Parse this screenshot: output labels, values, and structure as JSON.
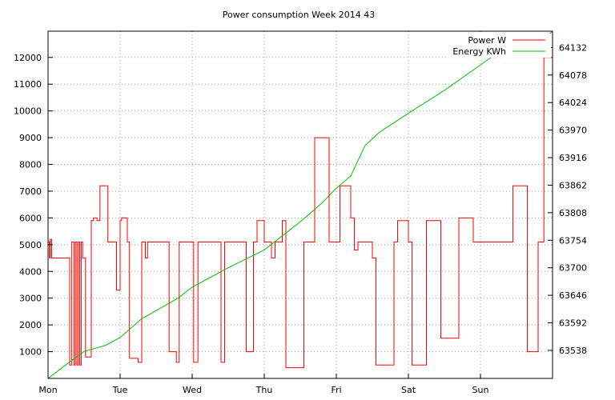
{
  "chart_data": {
    "type": "line",
    "title": "Power consumption Week 2014 43",
    "categories": [
      "Mon",
      "Tue",
      "Wed",
      "Thu",
      "Fri",
      "Sat",
      "Sun"
    ],
    "y_left": {
      "ticks": [
        1000,
        2000,
        3000,
        4000,
        5000,
        6000,
        7000,
        8000,
        9000,
        10000,
        11000,
        12000
      ],
      "ylim": [
        0,
        12980
      ]
    },
    "y_right": {
      "ticks": [
        63538,
        63592,
        63646,
        63700,
        63754,
        63808,
        63862,
        63916,
        63970,
        64024,
        64078,
        64132
      ],
      "ylim": [
        63483,
        64164
      ]
    },
    "xlim": [
      0,
      7
    ],
    "grid": true,
    "legend": "top-right",
    "colors": {
      "power": "#ff0000",
      "energy": "#00c000"
    },
    "series": [
      {
        "name": "Power W",
        "axis": "left",
        "color": "#ff0000",
        "step": true,
        "x": [
          0,
          0.02,
          0.03,
          0.05,
          0.06,
          0.3,
          0.33,
          0.36,
          0.38,
          0.4,
          0.42,
          0.44,
          0.46,
          0.48,
          0.5,
          0.52,
          0.6,
          0.63,
          0.68,
          0.72,
          0.8,
          0.83,
          0.95,
          1.0,
          1.02,
          1.1,
          1.13,
          1.2,
          1.25,
          1.3,
          1.35,
          1.38,
          1.65,
          1.68,
          1.78,
          1.82,
          2.0,
          2.02,
          2.08,
          2.2,
          2.4,
          2.45,
          2.7,
          2.75,
          2.85,
          2.9,
          3.0,
          3.05,
          3.1,
          3.15,
          3.25,
          3.3,
          3.5,
          3.55,
          3.7,
          3.78,
          3.9,
          3.95,
          4.0,
          4.05,
          4.15,
          4.2,
          4.25,
          4.3,
          4.5,
          4.55,
          4.75,
          4.8,
          4.85,
          5.0,
          5.05,
          5.2,
          5.25,
          5.4,
          5.45,
          5.7,
          5.8,
          5.9,
          6.0,
          6.05,
          6.45,
          6.5,
          6.65,
          6.7,
          6.8,
          6.88,
          6.95,
          7.0
        ],
        "values": [
          5100,
          4500,
          5200,
          4500,
          4500,
          500,
          5100,
          500,
          5100,
          500,
          5100,
          500,
          5100,
          4500,
          4500,
          800,
          5900,
          6000,
          5900,
          7200,
          7200,
          5100,
          3300,
          5900,
          6000,
          5100,
          750,
          750,
          600,
          5100,
          4500,
          5100,
          5100,
          1000,
          600,
          5100,
          5100,
          600,
          5100,
          5100,
          600,
          5100,
          5100,
          1000,
          5100,
          5900,
          5100,
          5100,
          4500,
          5100,
          5900,
          400,
          400,
          5100,
          9000,
          9000,
          5100,
          5100,
          5100,
          7200,
          7200,
          6000,
          4800,
          5100,
          4500,
          500,
          500,
          5100,
          5900,
          5100,
          500,
          500,
          5900,
          5900,
          1500,
          6000,
          6000,
          5100,
          5100,
          5100,
          7200,
          7200,
          1000,
          1000,
          5100,
          12000,
          12000,
          12000
        ]
      },
      {
        "name": "Energy KWh",
        "axis": "right",
        "color": "#00c000",
        "step": false,
        "x": [
          0,
          0.25,
          0.5,
          0.8,
          1.0,
          1.3,
          1.8,
          2.0,
          2.5,
          3.0,
          3.5,
          3.8,
          4.0,
          4.2,
          4.4,
          4.6,
          5.0,
          5.5,
          6.0,
          6.4,
          6.5,
          6.8,
          6.9,
          7.0
        ],
        "values": [
          63483,
          63510,
          63536,
          63548,
          63563,
          63600,
          63640,
          63662,
          63700,
          63735,
          63790,
          63827,
          63856,
          63880,
          63940,
          63966,
          64003,
          64048,
          64098,
          64138,
          64138,
          64140,
          64152,
          64164
        ]
      }
    ]
  }
}
